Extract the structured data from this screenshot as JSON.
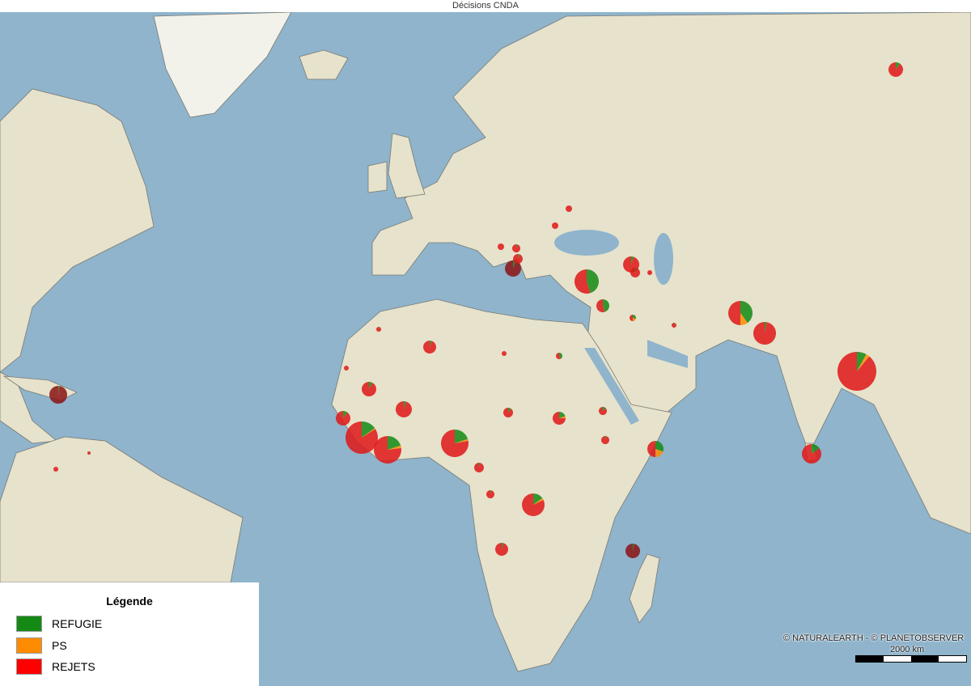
{
  "title": "Décisions CNDA",
  "legend": {
    "title": "Légende",
    "items": [
      {
        "label": "REFUGIE",
        "color": "#148a14"
      },
      {
        "label": "PS",
        "color": "#ff8c00"
      },
      {
        "label": "REJETS",
        "color": "#ff0000"
      }
    ]
  },
  "attribution": "© NATURALEARTH - © PLANETOBSERVER",
  "scale": {
    "label": "2000 km"
  },
  "colors": {
    "ocean": "#8fb4cc",
    "land": "#e6e2cc",
    "border": "#7a7a72"
  },
  "pies": [
    {
      "refugie": 0.1,
      "ps": 0,
      "rejets": 0.9
    },
    {
      "refugie": 0.02,
      "ps": 0,
      "rejets": 0.98,
      "dark": true
    },
    {
      "refugie": 0,
      "ps": 0,
      "rejets": 1
    },
    {
      "refugie": 0,
      "ps": 0,
      "rejets": 1
    },
    {
      "refugie": 0.05,
      "ps": 0,
      "rejets": 0.95
    },
    {
      "refugie": 0.05,
      "ps": 0,
      "rejets": 0.95
    },
    {
      "refugie": 0.08,
      "ps": 0,
      "rejets": 0.92
    },
    {
      "refugie": 0.05,
      "ps": 0,
      "rejets": 0.95
    },
    {
      "refugie": 0.1,
      "ps": 0,
      "rejets": 0.9
    },
    {
      "refugie": 0.15,
      "ps": 0.01,
      "rejets": 0.84
    },
    {
      "refugie": 0.2,
      "ps": 0.03,
      "rejets": 0.77
    },
    {
      "refugie": 0.2,
      "ps": 0.02,
      "rejets": 0.78
    },
    {
      "refugie": 0.1,
      "ps": 0,
      "rejets": 0.9
    },
    {
      "refugie": 0.2,
      "ps": 0.05,
      "rejets": 0.75
    },
    {
      "refugie": 0.15,
      "ps": 0,
      "rejets": 0.85
    },
    {
      "refugie": 0.05,
      "ps": 0,
      "rejets": 0.95
    },
    {
      "refugie": 0.3,
      "ps": 0.2,
      "rejets": 0.5
    },
    {
      "refugie": 0.05,
      "ps": 0,
      "rejets": 0.95
    },
    {
      "refugie": 0.05,
      "ps": 0,
      "rejets": 0.95
    },
    {
      "refugie": 0.15,
      "ps": 0.03,
      "rejets": 0.82
    },
    {
      "refugie": 0.05,
      "ps": 0,
      "rejets": 0.95
    },
    {
      "refugie": 0.03,
      "ps": 0,
      "rejets": 0.97,
      "dark": true
    },
    {
      "refugie": 0.45,
      "ps": 0,
      "rejets": 0.55
    },
    {
      "refugie": 0.05,
      "ps": 0,
      "rejets": 0.95
    },
    {
      "refugie": 0.05,
      "ps": 0,
      "rejets": 0.95
    },
    {
      "refugie": 0,
      "ps": 0,
      "rejets": 1
    },
    {
      "refugie": 0.45,
      "ps": 0,
      "rejets": 0.55
    },
    {
      "refugie": 0.3,
      "ps": 0.2,
      "rejets": 0.5
    },
    {
      "refugie": 0.1,
      "ps": 0,
      "rejets": 0.9
    },
    {
      "refugie": 0.4,
      "ps": 0.1,
      "rejets": 0.5
    },
    {
      "refugie": 0.03,
      "ps": 0,
      "rejets": 0.97
    },
    {
      "refugie": 0.08,
      "ps": 0.03,
      "rejets": 0.89
    },
    {
      "refugie": 0.15,
      "ps": 0,
      "rejets": 0.85
    },
    {
      "refugie": 0.05,
      "ps": 0,
      "rejets": 0.95,
      "dark": true
    },
    {
      "refugie": 0.05,
      "ps": 0,
      "rejets": 0.95
    },
    {
      "refugie": 0,
      "ps": 0,
      "rejets": 1
    },
    {
      "refugie": 0.05,
      "ps": 0,
      "rejets": 0.95
    },
    {
      "refugie": 0,
      "ps": 0,
      "rejets": 1
    },
    {
      "refugie": 0,
      "ps": 0,
      "rejets": 1
    },
    {
      "refugie": 0.4,
      "ps": 0,
      "rejets": 0.6
    },
    {
      "refugie": 0,
      "ps": 0,
      "rejets": 1
    },
    {
      "refugie": 0,
      "ps": 0,
      "rejets": 1
    }
  ]
}
